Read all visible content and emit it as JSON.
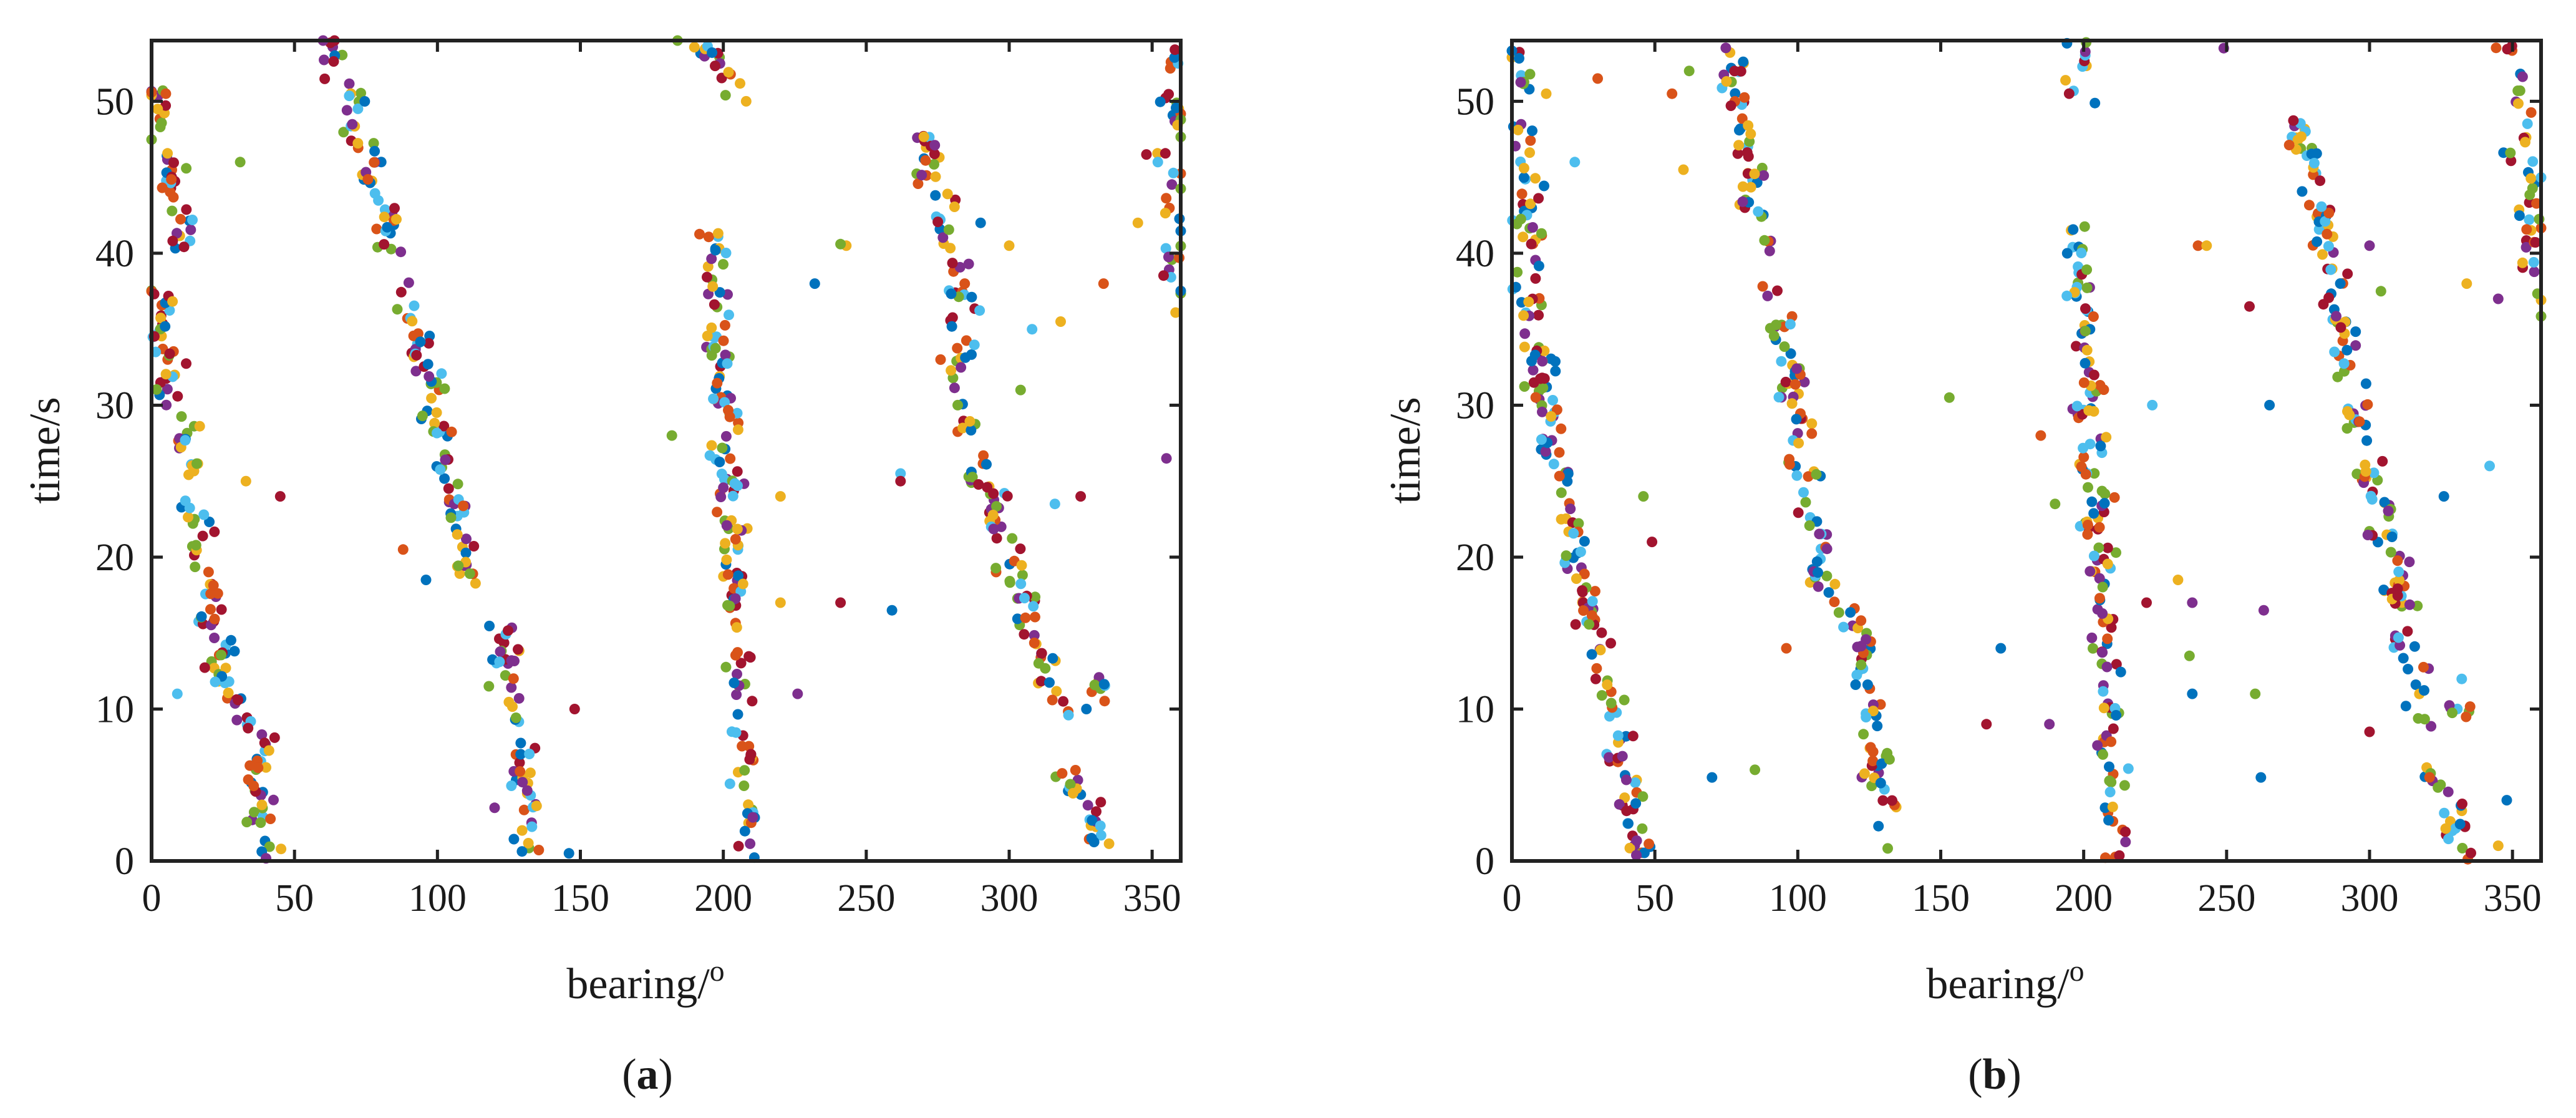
{
  "colors": [
    "#0072BD",
    "#D95319",
    "#EDB120",
    "#7E2F8E",
    "#77AC30",
    "#4DBEEE",
    "#A2142F"
  ],
  "chart_data": [
    {
      "type": "scatter",
      "panel_label": {
        "open": "(",
        "letter": "a",
        "close": ")"
      },
      "xlabel": "bearing/",
      "xlabel_sup": "o",
      "ylabel": "time/s",
      "xlim": [
        0,
        360
      ],
      "ylim": [
        0,
        54
      ],
      "xticks": [
        "0",
        "50",
        "100",
        "150",
        "200",
        "250",
        "300",
        "350"
      ],
      "yticks": [
        "0",
        "10",
        "20",
        "30",
        "40",
        "50"
      ],
      "grid": false,
      "tracks": [
        {
          "t0": 0,
          "t1": 9.5,
          "b0": 39,
          "b1": 37,
          "n": 40
        },
        {
          "t0": 9.5,
          "t1": 37.5,
          "b0": 28,
          "b1": 2,
          "n": 110
        },
        {
          "t0": 40,
          "t1": 51,
          "b0": 12,
          "b1": 1,
          "n": 40
        },
        {
          "t0": 40,
          "t1": 54,
          "b0": 86,
          "b1": 62,
          "n": 50
        },
        {
          "t0": 18,
          "t1": 38,
          "b0": 112,
          "b1": 90,
          "n": 75
        },
        {
          "t0": 0,
          "t1": 17,
          "b0": 134,
          "b1": 122,
          "n": 55
        },
        {
          "t0": 0,
          "t1": 42,
          "b0": 210,
          "b1": 196,
          "n": 150
        },
        {
          "t0": 50,
          "t1": 54,
          "b0": 208,
          "b1": 192,
          "n": 15
        },
        {
          "t0": 0.5,
          "t1": 6,
          "b0": 335,
          "b1": 320,
          "n": 25
        },
        {
          "t0": 9.5,
          "t1": 25,
          "b0": 318,
          "b1": 292,
          "n": 60
        },
        {
          "t0": 24,
          "t1": 36,
          "b0": 290,
          "b1": 280,
          "n": 30
        },
        {
          "t0": 36,
          "t1": 48,
          "b0": 286,
          "b1": 270,
          "n": 45
        },
        {
          "t0": 36,
          "t1": 54,
          "b0": 359,
          "b1": 356,
          "n": 40
        },
        {
          "t0": 9.5,
          "t1": 12,
          "b0": 338,
          "b1": 332,
          "n": 8
        }
      ],
      "clutter": [
        [
          5,
          50.5
        ],
        [
          31,
          46
        ],
        [
          45,
          24
        ],
        [
          33,
          25
        ],
        [
          9,
          11
        ],
        [
          148,
          10
        ],
        [
          146,
          0.5
        ],
        [
          220,
          17
        ],
        [
          226,
          11
        ],
        [
          241,
          17
        ],
        [
          259,
          16.5
        ],
        [
          243,
          40.5
        ],
        [
          241,
          40.6
        ],
        [
          232,
          38
        ],
        [
          318,
          35.5
        ],
        [
          316,
          23.5
        ],
        [
          325,
          24
        ],
        [
          327,
          10
        ],
        [
          333,
          38
        ],
        [
          355,
          26.5
        ],
        [
          262,
          25.5
        ],
        [
          88,
          20.5
        ],
        [
          182,
          28
        ],
        [
          96,
          18.5
        ],
        [
          208,
          50
        ],
        [
          184,
          54
        ],
        [
          290,
          42
        ],
        [
          300,
          40.5
        ],
        [
          304,
          31
        ],
        [
          308,
          35
        ],
        [
          262,
          25
        ],
        [
          276,
          33
        ],
        [
          282,
          30
        ],
        [
          352,
          46
        ],
        [
          348,
          46.5
        ],
        [
          345,
          42
        ],
        [
          60,
          54
        ],
        [
          64,
          54
        ],
        [
          220,
          24
        ],
        [
          120,
          3.5
        ],
        [
          118,
          11.5
        ]
      ]
    },
    {
      "type": "scatter",
      "panel_label": {
        "open": "(",
        "letter": "b",
        "close": ")"
      },
      "xlabel": "bearing/",
      "xlabel_sup": "o",
      "ylabel": "time/s",
      "xlim": [
        0,
        360
      ],
      "ylim": [
        0,
        54
      ],
      "xticks": [
        "0",
        "50",
        "100",
        "150",
        "200",
        "250",
        "300",
        "350"
      ],
      "yticks": [
        "0",
        "10",
        "20",
        "30",
        "40",
        "50"
      ],
      "grid": false,
      "tracks": [
        {
          "t0": 0,
          "t1": 10,
          "b0": 44,
          "b1": 36,
          "n": 40
        },
        {
          "t0": 10,
          "t1": 38,
          "b0": 34,
          "b1": 3,
          "n": 110
        },
        {
          "t0": 38,
          "t1": 54,
          "b0": 8,
          "b1": 0.5,
          "n": 45
        },
        {
          "t0": 40,
          "t1": 54,
          "b0": 88,
          "b1": 76,
          "n": 50
        },
        {
          "t0": 0,
          "t1": 17,
          "b0": 134,
          "b1": 118,
          "n": 55
        },
        {
          "t0": 17,
          "t1": 38,
          "b0": 110,
          "b1": 92,
          "n": 75
        },
        {
          "t0": 0,
          "t1": 42,
          "b0": 212,
          "b1": 198,
          "n": 150
        },
        {
          "t0": 50,
          "t1": 54,
          "b0": 200,
          "b1": 196,
          "n": 12
        },
        {
          "t0": 0,
          "t1": 6,
          "b0": 335,
          "b1": 322,
          "n": 25
        },
        {
          "t0": 9,
          "t1": 49,
          "b0": 320,
          "b1": 275,
          "n": 150
        },
        {
          "t0": 36,
          "t1": 54,
          "b0": 359,
          "b1": 350,
          "n": 45
        },
        {
          "t0": 9.5,
          "t1": 12,
          "b0": 334,
          "b1": 330,
          "n": 8
        }
      ],
      "clutter": [
        [
          12,
          50.5
        ],
        [
          22,
          46
        ],
        [
          30,
          51.5
        ],
        [
          46,
          24
        ],
        [
          49,
          21
        ],
        [
          56,
          50.5
        ],
        [
          60,
          45.5
        ],
        [
          85,
          6
        ],
        [
          70,
          5.5
        ],
        [
          96,
          14
        ],
        [
          153,
          30.5
        ],
        [
          166,
          9
        ],
        [
          171,
          14
        ],
        [
          185,
          28
        ],
        [
          188,
          9
        ],
        [
          190,
          23.5
        ],
        [
          224,
          30
        ],
        [
          222,
          17
        ],
        [
          233,
          18.5
        ],
        [
          238,
          17
        ],
        [
          237,
          13.5
        ],
        [
          238,
          11
        ],
        [
          240,
          40.5
        ],
        [
          243,
          40.5
        ],
        [
          249,
          53.5
        ],
        [
          258,
          36.5
        ],
        [
          262,
          5.5
        ],
        [
          263,
          16.5
        ],
        [
          260,
          11
        ],
        [
          265,
          30
        ],
        [
          300,
          40.5
        ],
        [
          304,
          37.5
        ],
        [
          300,
          8.5
        ],
        [
          326,
          24
        ],
        [
          334,
          38
        ],
        [
          345,
          37
        ],
        [
          342,
          26
        ],
        [
          348,
          4
        ],
        [
          345,
          1
        ],
        [
          62,
          52
        ]
      ]
    }
  ]
}
